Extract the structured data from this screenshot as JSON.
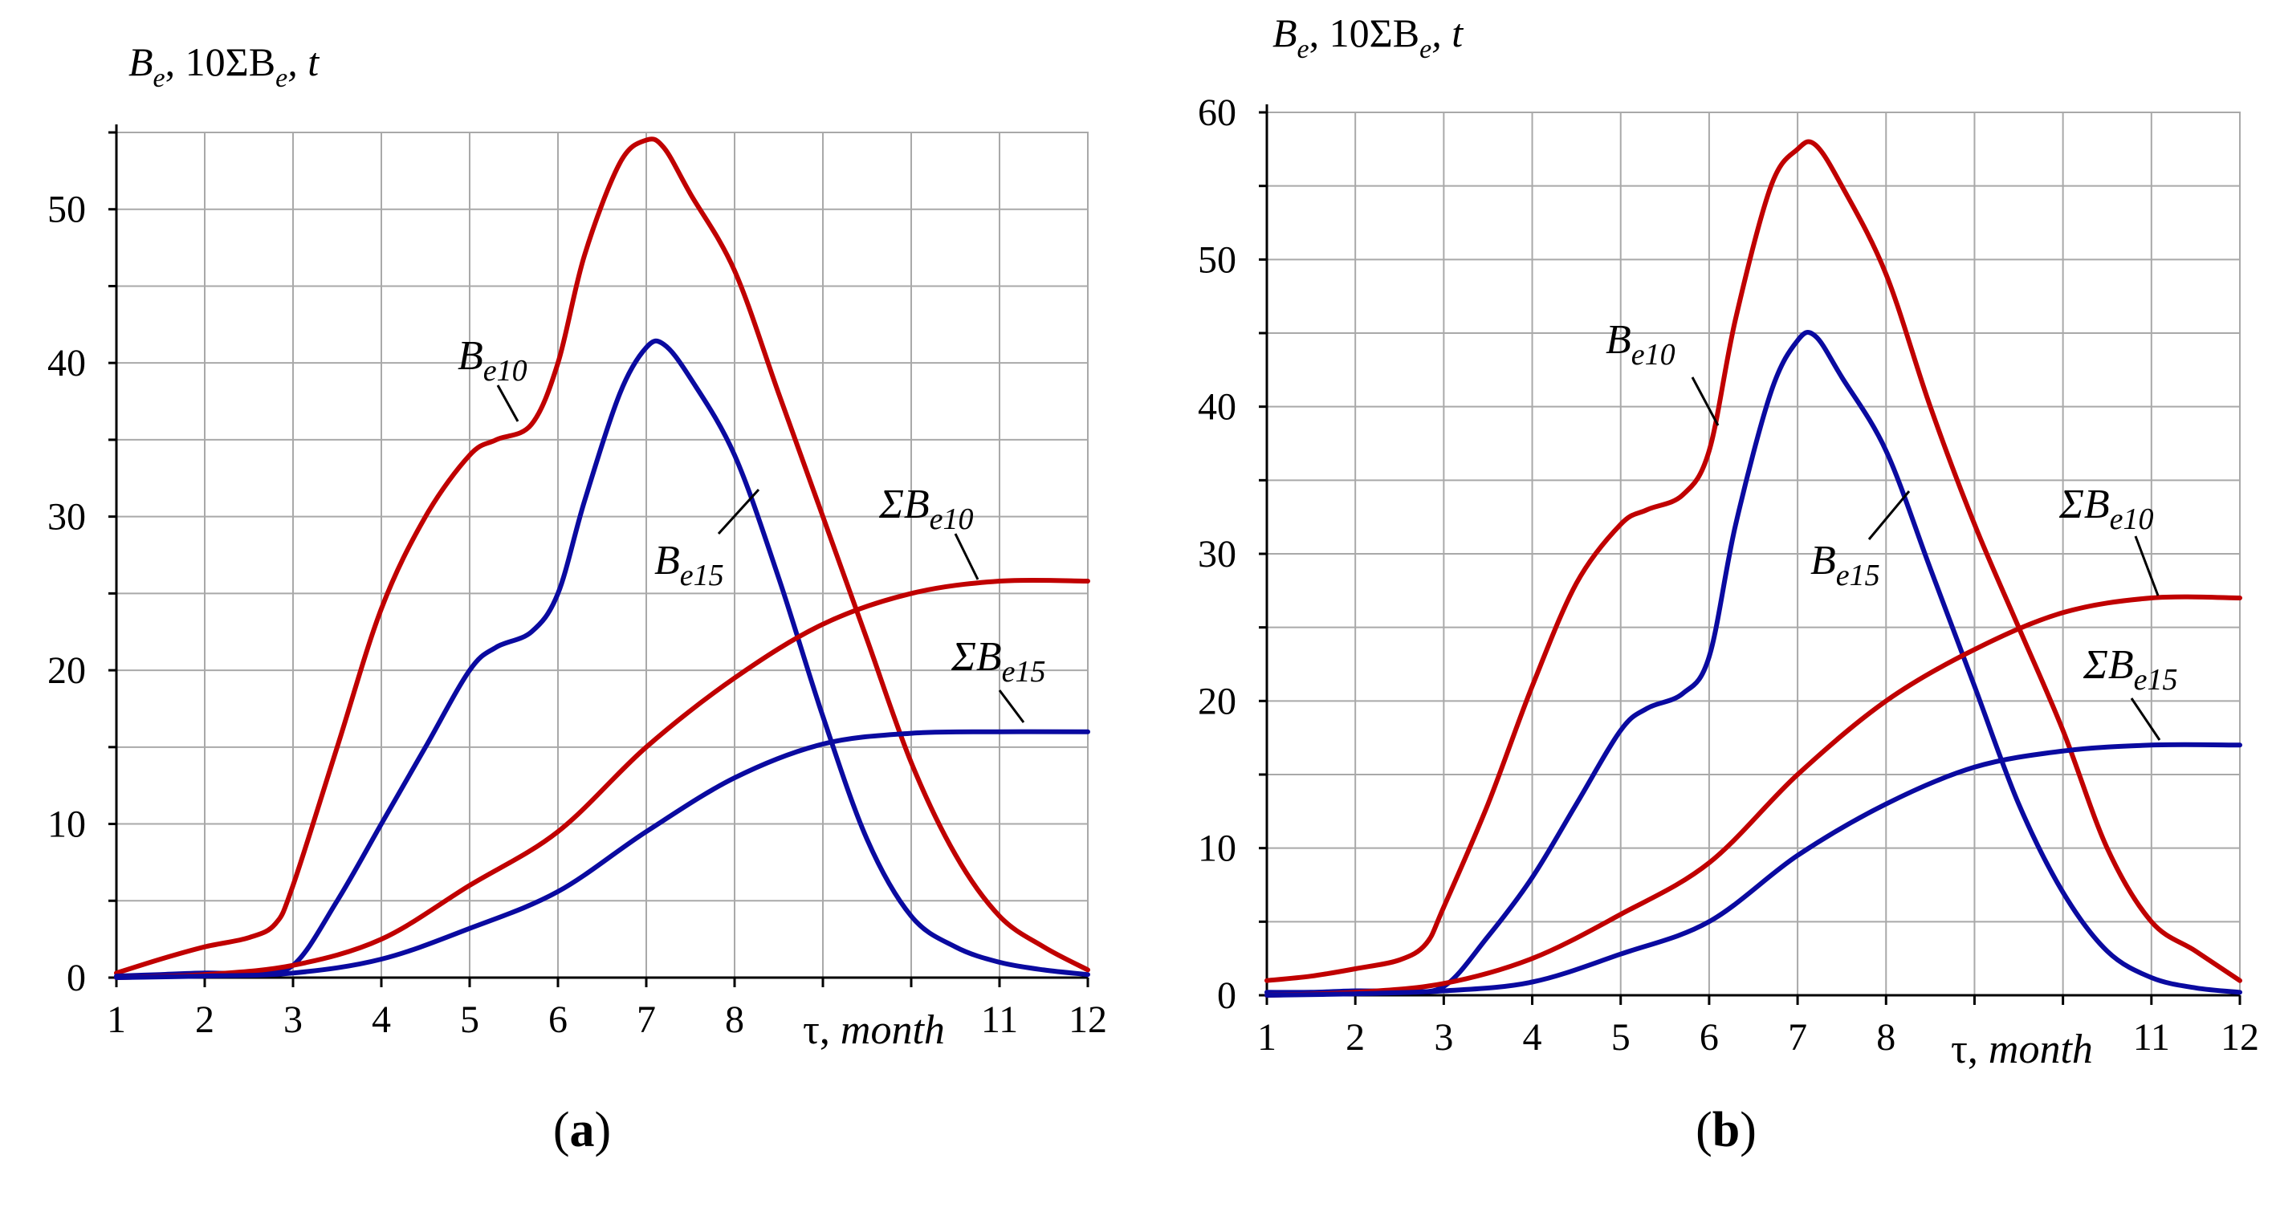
{
  "colors": {
    "red": "#c00000",
    "blue": "#0a0aa0"
  },
  "chart_data": [
    {
      "type": "line",
      "panel_label": "a",
      "ylabel_parts": {
        "B": "B",
        "e": "e",
        "ten_sigma": ", 10ΣB",
        "t": ", t"
      },
      "xlabel": {
        "tau": "τ, ",
        "unit": "month"
      },
      "x_ticks": [
        "1",
        "2",
        "3",
        "4",
        "5",
        "6",
        "7",
        "8",
        "",
        "",
        "11",
        "12"
      ],
      "y_ticks": [
        "0",
        "10",
        "20",
        "30",
        "40",
        "50"
      ],
      "xlim": [
        1,
        12
      ],
      "ylim": [
        0,
        55
      ],
      "grid": true,
      "series": [
        {
          "name": "Be10",
          "label_main": "B",
          "label_sub": "e10",
          "color": "red",
          "x": [
            1,
            1.5,
            2,
            2.5,
            2.8,
            3,
            3.5,
            4,
            4.5,
            5,
            5.3,
            5.7,
            6,
            6.3,
            6.7,
            7,
            7.2,
            7.5,
            8,
            8.5,
            9,
            9.5,
            10,
            10.5,
            11,
            11.5,
            12
          ],
          "y": [
            0.3,
            1.2,
            2,
            2.6,
            3.5,
            6,
            15,
            24,
            30,
            34,
            35,
            36,
            40,
            47,
            53,
            54.5,
            54,
            51,
            46,
            38,
            30,
            22,
            14,
            8,
            4,
            2,
            0.5
          ]
        },
        {
          "name": "Be15",
          "label_main": "B",
          "label_sub": "e15",
          "color": "blue",
          "x": [
            1,
            1.5,
            2,
            2.5,
            3,
            3.5,
            4,
            4.5,
            5,
            5.3,
            5.7,
            6,
            6.3,
            6.7,
            7,
            7.2,
            7.5,
            8,
            8.5,
            9,
            9.5,
            10,
            10.5,
            11,
            11.5,
            12
          ],
          "y": [
            0.1,
            0.2,
            0.3,
            0.3,
            0.8,
            5,
            10,
            15,
            20,
            21.5,
            22.5,
            25,
            31,
            38,
            41,
            41.2,
            39,
            34,
            26,
            17,
            9,
            4,
            2,
            1,
            0.5,
            0.2
          ]
        },
        {
          "name": "ΣBe10",
          "label_main": "ΣB",
          "label_sub": "e10",
          "color": "red",
          "x": [
            1,
            2,
            3,
            4,
            5,
            6,
            7,
            8,
            9,
            10,
            11,
            12
          ],
          "y": [
            0,
            0.2,
            0.8,
            2.5,
            6,
            9.5,
            15,
            19.5,
            23,
            25,
            25.8,
            25.8
          ]
        },
        {
          "name": "ΣBe15",
          "label_main": "ΣB",
          "label_sub": "e15",
          "color": "blue",
          "x": [
            1,
            2,
            3,
            4,
            5,
            6,
            7,
            8,
            9,
            10,
            11,
            12
          ],
          "y": [
            0,
            0.1,
            0.3,
            1.2,
            3.2,
            5.6,
            9.5,
            13,
            15.2,
            15.9,
            16,
            16
          ]
        }
      ]
    },
    {
      "type": "line",
      "panel_label": "b",
      "ylabel_parts": {
        "B": "B",
        "e": "e",
        "ten_sigma": ", 10ΣB",
        "t": ", t"
      },
      "xlabel": {
        "tau": "τ, ",
        "unit": "month"
      },
      "x_ticks": [
        "1",
        "2",
        "3",
        "4",
        "5",
        "6",
        "7",
        "8",
        "",
        "",
        "11",
        "12"
      ],
      "y_ticks": [
        "0",
        "10",
        "20",
        "30",
        "40",
        "50",
        "60"
      ],
      "xlim": [
        1,
        12
      ],
      "ylim": [
        0,
        60
      ],
      "grid": true,
      "series": [
        {
          "name": "Be10",
          "label_main": "B",
          "label_sub": "e10",
          "color": "red",
          "x": [
            1,
            1.5,
            2,
            2.5,
            2.8,
            3,
            3.5,
            4,
            4.5,
            5,
            5.3,
            5.7,
            6,
            6.3,
            6.7,
            7,
            7.2,
            7.5,
            8,
            8.5,
            9,
            9.5,
            10,
            10.5,
            11,
            11.5,
            12
          ],
          "y": [
            1,
            1.3,
            1.8,
            2.4,
            3.5,
            6,
            13,
            21,
            28,
            32,
            33,
            34,
            37,
            46,
            55,
            57.5,
            57.8,
            55,
            49,
            40,
            32,
            25,
            18,
            10,
            5,
            3,
            1
          ]
        },
        {
          "name": "Be15",
          "label_main": "B",
          "label_sub": "e15",
          "color": "blue",
          "x": [
            1,
            1.5,
            2,
            2.5,
            3,
            3.5,
            4,
            4.5,
            5,
            5.3,
            5.7,
            6,
            6.3,
            6.7,
            7,
            7.2,
            7.5,
            8,
            8.5,
            9,
            9.5,
            10,
            10.5,
            11,
            11.5,
            12
          ],
          "y": [
            0.2,
            0.2,
            0.3,
            0.3,
            0.6,
            4,
            8,
            13,
            18,
            19.5,
            20.5,
            23,
            32,
            41,
            44.5,
            44.8,
            42,
            37,
            29,
            21,
            13,
            7,
            3,
            1.2,
            0.5,
            0.2
          ]
        },
        {
          "name": "ΣBe10",
          "label_main": "ΣB",
          "label_sub": "e10",
          "color": "red",
          "x": [
            1,
            2,
            3,
            4,
            5,
            6,
            7,
            8,
            9,
            10,
            11,
            12
          ],
          "y": [
            0,
            0.2,
            0.8,
            2.5,
            5.5,
            9,
            15,
            20,
            23.5,
            26,
            27,
            27
          ]
        },
        {
          "name": "ΣBe15",
          "label_main": "ΣB",
          "label_sub": "e15",
          "color": "blue",
          "x": [
            1,
            2,
            3,
            4,
            5,
            6,
            7,
            8,
            9,
            10,
            11,
            12
          ],
          "y": [
            0,
            0.1,
            0.3,
            0.9,
            2.8,
            5,
            9.5,
            13,
            15.5,
            16.6,
            17,
            17
          ]
        }
      ]
    }
  ]
}
